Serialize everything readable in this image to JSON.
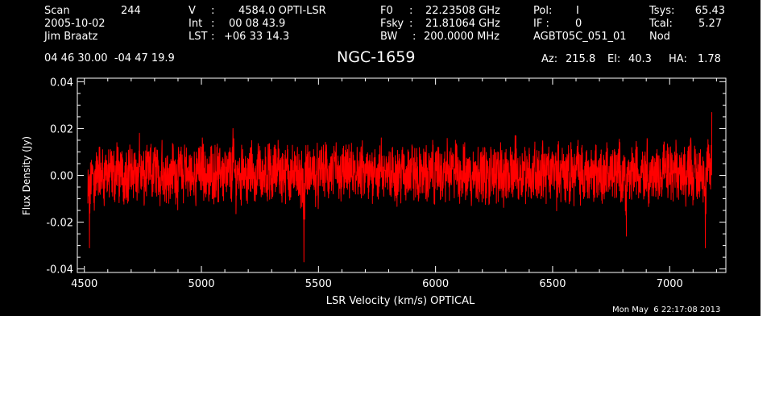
{
  "header": {
    "col1": {
      "scan_label": "Scan",
      "scan_value": "244",
      "date": "2005-10-02",
      "observer": "Jim Braatz"
    },
    "col2": {
      "v_label": "V",
      "v_value": "4584.0 OPTI-LSR",
      "int_label": "Int",
      "int_value": "00 08 43.9",
      "lst_label": "LST",
      "lst_value": "+06 33 14.3"
    },
    "col3": {
      "f0_label": "F0",
      "f0_value": "22.23508 GHz",
      "fsky_label": "Fsky",
      "fsky_value": "21.81064 GHz",
      "bw_label": "BW",
      "bw_value": "200.0000 MHz"
    },
    "col4": {
      "pol_label": "Pol:",
      "pol_value": "I",
      "if_label": "IF :",
      "if_value": "0",
      "project": "AGBT05C_051_01"
    },
    "col5": {
      "tsys_label": "Tsys:",
      "tsys_value": "65.43",
      "tcal_label": "Tcal:",
      "tcal_value": "5.27",
      "procedure": "Nod"
    },
    "coords": "04 46 30.00  -04 47 19.9",
    "pointing": {
      "az_label": "Az:",
      "az_value": "215.8",
      "el_label": "El:",
      "el_value": "40.3",
      "ha_label": "HA:",
      "ha_value": "1.78"
    }
  },
  "timestamp": "Mon May  6 22:17:08 2013",
  "chart_data": {
    "type": "line",
    "title": "NGC-1659",
    "xlabel": "LSR Velocity (km/s) OPTICAL",
    "ylabel": "Flux Density (Jy)",
    "xlim": [
      4470,
      7240
    ],
    "ylim": [
      -0.0415,
      0.0415
    ],
    "xticks": [
      4500,
      5000,
      5500,
      6000,
      6500,
      7000
    ],
    "xtick_labels": [
      "4500",
      "5000",
      "5500",
      "6000",
      "6500",
      "7000"
    ],
    "yticks": [
      -0.04,
      -0.02,
      0.0,
      0.02,
      0.04
    ],
    "ytick_labels": [
      "-0.04",
      "-0.02",
      "0.00",
      "0.02",
      "0.04"
    ],
    "series": [
      {
        "color": "#ff0000",
        "x_start": 4515,
        "x_end": 7180,
        "y": [
          -0.012,
          -0.031,
          -0.008,
          0.004,
          -0.015,
          0.006,
          -0.003,
          0.012,
          -0.006,
          0.003,
          -0.009,
          0.008,
          0.001,
          -0.004,
          0.011,
          -0.002,
          0.005,
          -0.008,
          0.014,
          0.002,
          -0.005,
          0.009,
          -0.011,
          0.004,
          0.007,
          -0.003,
          0.013,
          -0.006,
          0.002,
          0.009,
          -0.007,
          0.004,
          0.018,
          -0.004,
          0.006,
          -0.012,
          0.003,
          0.01,
          -0.002,
          0.007,
          -0.009,
          0.005,
          0.012,
          -0.001,
          0.004,
          -0.008,
          0.015,
          0.002,
          -0.006,
          0.008,
          0.003,
          -0.01,
          0.006,
          0.011,
          -0.003,
          0.004,
          -0.007,
          0.009,
          0.001,
          -0.005,
          0.013,
          0.004,
          -0.009,
          0.006,
          0.002,
          -0.004,
          0.01,
          -0.013,
          0.005,
          0.008,
          -0.002,
          0.016,
          0.003,
          -0.006,
          0.007,
          -0.011,
          0.002,
          0.009,
          -0.004,
          0.005,
          0.012,
          -0.008,
          0.003,
          0.006,
          -0.002,
          0.01,
          -0.007,
          0.004,
          0.008,
          -0.005,
          0.02,
          0.001,
          -0.009,
          0.006,
          0.003,
          -0.004,
          0.011,
          -0.001,
          0.005,
          -0.012,
          0.007,
          0.002,
          0.009,
          -0.006,
          0.004,
          -0.003,
          0.01,
          0.006,
          -0.008,
          0.002,
          0.012,
          -0.004,
          0.005,
          0.008,
          -0.01,
          0.003,
          0.007,
          -0.002,
          0.015,
          0.001,
          -0.006,
          0.009,
          -0.003,
          0.004,
          0.011,
          -0.008,
          0.006,
          0.002,
          -0.005,
          0.008,
          0.012,
          -0.004,
          -0.014,
          0.003,
          -0.037,
          0.006,
          0.009,
          -0.006,
          0.004,
          0.002,
          0.011,
          -0.005,
          0.007,
          -0.009,
          0.003,
          0.01,
          -0.002,
          0.005,
          0.013,
          -0.007,
          0.002,
          0.008,
          -0.004,
          0.006,
          0.014,
          -0.003,
          0.004,
          -0.011,
          0.009,
          0.001,
          0.007,
          -0.006,
          0.003,
          0.01,
          -0.002,
          0.006,
          -0.008,
          0.012,
          0.004,
          -0.005,
          0.008,
          0.001,
          -0.003,
          0.009,
          -0.01,
          0.005,
          0.006,
          -0.002,
          0.011,
          0.003,
          -0.007,
          0.004,
          0.016,
          -0.004,
          0.002,
          0.008,
          -0.006,
          0.005,
          -0.009,
          0.012,
          0.001,
          0.006,
          -0.004,
          0.009,
          -0.003,
          0.004,
          0.007,
          -0.008,
          0.003,
          0.01,
          -0.005,
          0.013,
          0.002,
          -0.002,
          0.006,
          -0.011,
          0.008,
          0.004,
          -0.004,
          0.01,
          0.001,
          -0.007,
          0.005,
          0.003,
          0.009,
          -0.006,
          0.002,
          0.012,
          -0.003,
          0.004,
          -0.009,
          0.007,
          0.002,
          0.011,
          -0.005,
          0.003,
          0.008,
          -0.002,
          0.015,
          0.004,
          -0.008,
          0.006,
          -0.004,
          0.009,
          0.001,
          -0.006,
          0.007,
          0.003,
          -0.01,
          0.01,
          0.005,
          -0.003,
          0.012,
          -0.007,
          0.002,
          0.008,
          0.004,
          -0.005,
          0.006,
          -0.012,
          0.009,
          0.003,
          0.011,
          -0.004,
          0.005,
          -0.002,
          0.014,
          0.001,
          -0.008,
          0.007,
          0.004,
          -0.006,
          0.01,
          0.002,
          -0.003,
          0.017,
          0.005,
          -0.009,
          0.008,
          -0.002,
          0.006,
          0.012,
          -0.005,
          0.003,
          0.009,
          -0.007,
          0.004,
          0.011,
          -0.003,
          0.007,
          0.002,
          -0.01,
          0.013,
          0.005,
          -0.004,
          0.008,
          0.001,
          -0.006,
          0.01,
          0.003,
          0.006,
          -0.008,
          0.012,
          -0.002,
          0.004,
          0.009,
          -0.005,
          0.007,
          0.002,
          -0.011,
          0.011,
          0.004,
          -0.003,
          0.008,
          0.015,
          -0.006,
          0.005,
          0.002,
          -0.009,
          0.01,
          0.006,
          -0.004,
          0.007,
          0.003,
          -0.007,
          0.013,
          0.001,
          -0.002,
          0.009,
          -0.012,
          0.006,
          0.004,
          0.011,
          -0.005,
          0.008,
          0.002,
          -0.003,
          0.01,
          -0.008,
          0.005,
          0.014,
          -0.004,
          0.003,
          0.007,
          -0.026,
          0.005,
          -0.01,
          0.006,
          0.009,
          -0.005,
          0.012,
          0.003,
          -0.007,
          0.004,
          0.01,
          -0.003,
          0.006,
          0.015,
          -0.008,
          0.002,
          0.008,
          -0.006,
          0.005,
          0.011,
          -0.002,
          0.007,
          -0.009,
          0.013,
          0.004,
          -0.004,
          0.009,
          0.001,
          0.006,
          -0.011,
          0.01,
          0.003,
          -0.005,
          0.008,
          0.002,
          -0.003,
          0.012,
          -0.007,
          0.004,
          0.009,
          0.016,
          -0.006,
          0.003,
          0.007,
          -0.01,
          0.005,
          0.011,
          -0.002,
          0.006,
          -0.031,
          0.008,
          0.013,
          -0.004,
          0.027
        ]
      }
    ]
  }
}
